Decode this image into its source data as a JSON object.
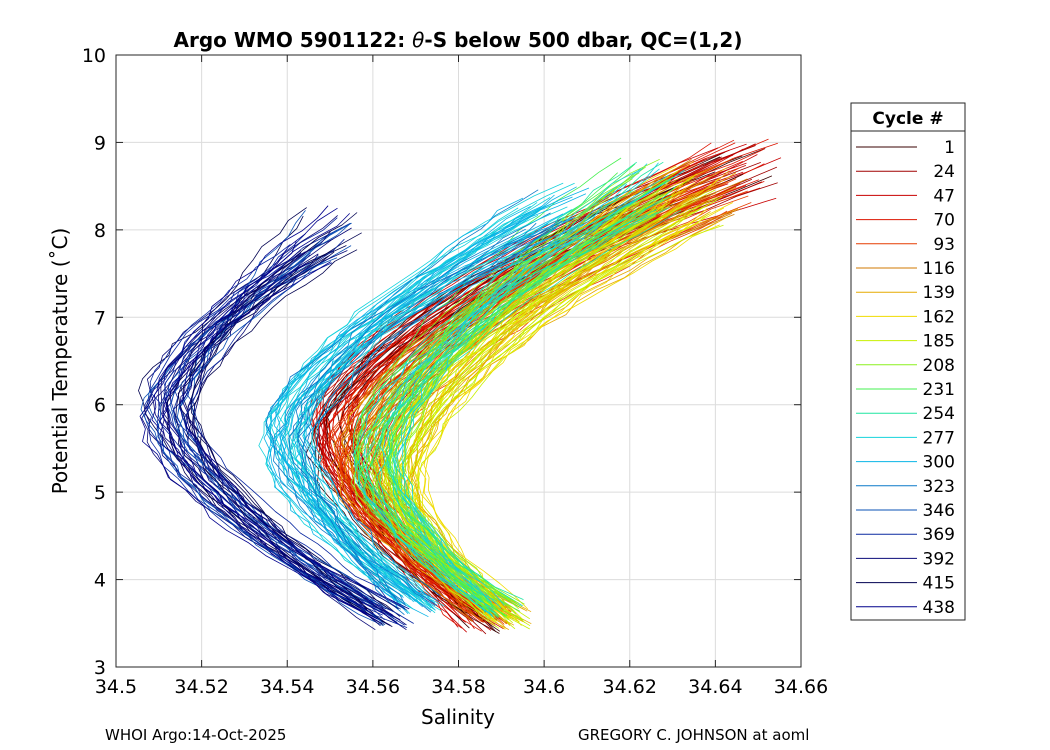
{
  "chart_data": {
    "type": "line",
    "title": "Argo WMO 5901122: θ-S below 500 dbar,  QC=(1,2)",
    "title_parts": {
      "prefix": "Argo WMO 5901122: ",
      "symbol": "θ",
      "suffix": "-S below 500 dbar,  QC=(1,2)"
    },
    "xlabel": "Salinity",
    "ylabel": "Potential Temperature (˚C)",
    "xlim": [
      34.5,
      34.66
    ],
    "ylim": [
      3,
      10
    ],
    "xticks": [
      34.5,
      34.52,
      34.54,
      34.56,
      34.58,
      34.6,
      34.62,
      34.64,
      34.66
    ],
    "xtick_labels": [
      "34.5",
      "34.52",
      "34.54",
      "34.56",
      "34.58",
      "34.6",
      "34.62",
      "34.64",
      "34.66"
    ],
    "yticks": [
      3,
      4,
      5,
      6,
      7,
      8,
      9,
      10
    ],
    "ytick_labels": [
      "3",
      "4",
      "5",
      "6",
      "7",
      "8",
      "9",
      "10"
    ],
    "grid": true,
    "legend": {
      "title": "Cycle #",
      "placement": "outside-right",
      "entries": [
        {
          "label": "1",
          "color": "#3a0000"
        },
        {
          "label": "24",
          "color": "#a00000"
        },
        {
          "label": "47",
          "color": "#c80000"
        },
        {
          "label": "70",
          "color": "#dc1400"
        },
        {
          "label": "93",
          "color": "#e63c00"
        },
        {
          "label": "116",
          "color": "#d27800"
        },
        {
          "label": "139",
          "color": "#e6aa00"
        },
        {
          "label": "162",
          "color": "#f0dc00"
        },
        {
          "label": "185",
          "color": "#c8f000"
        },
        {
          "label": "208",
          "color": "#8cf01e"
        },
        {
          "label": "231",
          "color": "#46f050"
        },
        {
          "label": "254",
          "color": "#1ee6a0"
        },
        {
          "label": "277",
          "color": "#14d2dc"
        },
        {
          "label": "300",
          "color": "#0ab4e6"
        },
        {
          "label": "323",
          "color": "#0a78c8"
        },
        {
          "label": "346",
          "color": "#0a50b4"
        },
        {
          "label": "369",
          "color": "#0a28a0"
        },
        {
          "label": "392",
          "color": "#0a0a78"
        },
        {
          "label": "415",
          "color": "#000050"
        },
        {
          "label": "438",
          "color": "#00008c"
        }
      ]
    },
    "series_groups": [
      {
        "cycles": [
          1,
          60
        ],
        "S_min": 34.551,
        "T_min": 5.7,
        "S_top": 34.648,
        "T_top": 8.7,
        "S_bot": 34.585,
        "T_bot": 3.5,
        "colors": [
          "#3a0000",
          "#a00000",
          "#c80000",
          "#dc1400"
        ]
      },
      {
        "cycles": [
          60,
          150
        ],
        "S_min": 34.556,
        "T_min": 5.4,
        "S_top": 34.64,
        "T_top": 8.5,
        "S_bot": 34.588,
        "T_bot": 3.6,
        "colors": [
          "#dc1400",
          "#e63c00",
          "#d27800",
          "#e6aa00"
        ]
      },
      {
        "cycles": [
          150,
          200
        ],
        "S_min": 34.566,
        "T_min": 5.2,
        "S_top": 34.636,
        "T_top": 8.4,
        "S_bot": 34.592,
        "T_bot": 3.55,
        "colors": [
          "#e6aa00",
          "#f0dc00",
          "#c8f000"
        ]
      },
      {
        "cycles": [
          200,
          270
        ],
        "S_min": 34.561,
        "T_min": 5.35,
        "S_top": 34.625,
        "T_top": 8.5,
        "S_bot": 34.59,
        "T_bot": 3.65,
        "colors": [
          "#8cf01e",
          "#46f050",
          "#1ee6a0",
          "#14d2dc"
        ]
      },
      {
        "cycles": [
          270,
          330
        ],
        "S_min": 34.54,
        "T_min": 5.6,
        "S_top": 34.602,
        "T_top": 8.2,
        "S_bot": 34.571,
        "T_bot": 3.7,
        "colors": [
          "#14d2dc",
          "#0ab4e6",
          "#0a78c8"
        ]
      },
      {
        "cycles": [
          330,
          440
        ],
        "S_min": 34.512,
        "T_min": 5.95,
        "S_top": 34.549,
        "T_top": 7.95,
        "S_bot": 34.564,
        "T_bot": 3.55,
        "colors": [
          "#0a50b4",
          "#0a28a0",
          "#0a0a78",
          "#000050",
          "#00008c"
        ]
      }
    ]
  },
  "footer": {
    "left": "WHOI Argo:14-Oct-2025",
    "right": "GREGORY C. JOHNSON at aoml"
  }
}
